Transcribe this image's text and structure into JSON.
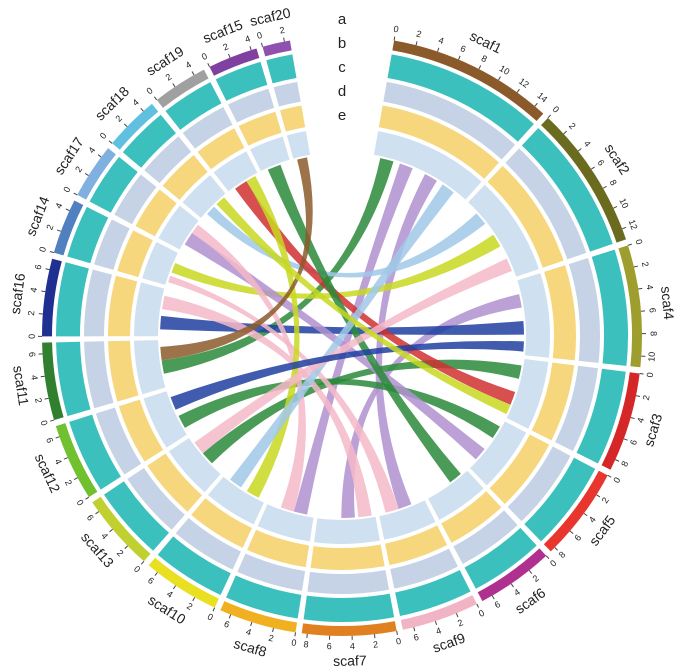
{
  "chart_data": {
    "type": "circos",
    "tracks": [
      "a",
      "b",
      "c",
      "d",
      "e"
    ],
    "scaffolds": [
      {
        "name": "scaf1",
        "length": 15,
        "color": "#8b5a2b",
        "ticks": [
          0,
          2,
          4,
          6,
          8,
          10,
          12,
          14
        ]
      },
      {
        "name": "scaf2",
        "length": 13,
        "color": "#6b6b1f",
        "ticks": [
          0,
          2,
          4,
          6,
          8,
          10,
          12
        ]
      },
      {
        "name": "scaf4",
        "length": 11,
        "color": "#9e9e2e",
        "ticks": [
          0,
          2,
          4,
          6,
          8,
          10
        ]
      },
      {
        "name": "scaf3",
        "length": 9,
        "color": "#d62728",
        "ticks": [
          0,
          2,
          4,
          6,
          8
        ]
      },
      {
        "name": "scaf5",
        "length": 8.5,
        "color": "#e8352e",
        "ticks": [
          0,
          2,
          4,
          6,
          8
        ]
      },
      {
        "name": "scaf6",
        "length": 7,
        "color": "#b03090",
        "ticks": [
          0,
          2,
          4,
          6
        ]
      },
      {
        "name": "scaf9",
        "length": 7,
        "color": "#f0b4c4",
        "ticks": [
          0,
          2,
          4,
          6
        ]
      },
      {
        "name": "scaf7",
        "length": 8.5,
        "color": "#e08020",
        "ticks": [
          0,
          2,
          4,
          6,
          8
        ]
      },
      {
        "name": "scaf8",
        "length": 7,
        "color": "#f0b020",
        "ticks": [
          0,
          2,
          4,
          6
        ]
      },
      {
        "name": "scaf10",
        "length": 7,
        "color": "#e8e020",
        "ticks": [
          0,
          2,
          4,
          6
        ]
      },
      {
        "name": "scaf13",
        "length": 7,
        "color": "#c0d030",
        "ticks": [
          0,
          2,
          4,
          6
        ]
      },
      {
        "name": "scaf12",
        "length": 7,
        "color": "#70c030",
        "ticks": [
          0,
          2,
          4,
          6
        ]
      },
      {
        "name": "scaf11",
        "length": 7,
        "color": "#308030",
        "ticks": [
          0,
          2,
          4,
          6
        ]
      },
      {
        "name": "scaf16",
        "length": 7,
        "color": "#203090",
        "ticks": [
          0,
          2,
          4,
          6
        ]
      },
      {
        "name": "scaf14",
        "length": 5,
        "color": "#5080c0",
        "ticks": [
          0,
          2,
          4
        ]
      },
      {
        "name": "scaf17",
        "length": 5,
        "color": "#80b0e0",
        "ticks": [
          0,
          2,
          4
        ]
      },
      {
        "name": "scaf18",
        "length": 5,
        "color": "#60c0e0",
        "ticks": [
          0,
          2,
          4
        ]
      },
      {
        "name": "scaf19",
        "length": 5,
        "color": "#a0a0a0",
        "ticks": [
          0,
          2,
          4
        ]
      },
      {
        "name": "scaf15",
        "length": 4.5,
        "color": "#8040a0",
        "ticks": [
          0,
          2,
          4
        ]
      },
      {
        "name": "scaf20",
        "length": 2.5,
        "color": "#9050b0",
        "ticks": [
          0,
          2
        ]
      }
    ],
    "links": [
      {
        "source": [
          0,
          1,
          3
        ],
        "target": [
          12,
          2,
          4
        ],
        "color": "#2a8a3a"
      },
      {
        "source": [
          0,
          4,
          6
        ],
        "target": [
          8,
          1,
          3
        ],
        "color": "#b090d0"
      },
      {
        "source": [
          0,
          8,
          10
        ],
        "target": [
          6,
          2,
          4
        ],
        "color": "#b090d0"
      },
      {
        "source": [
          1,
          2,
          4
        ],
        "target": [
          16,
          1,
          2.5
        ],
        "color": "#a0c8e8"
      },
      {
        "source": [
          1,
          6,
          8
        ],
        "target": [
          14,
          2,
          3.5
        ],
        "color": "#c8d820"
      },
      {
        "source": [
          2,
          2,
          4
        ],
        "target": [
          7,
          3,
          5
        ],
        "color": "#b090d0"
      },
      {
        "source": [
          2,
          6,
          8
        ],
        "target": [
          13,
          1,
          3
        ],
        "color": "#2040a0"
      },
      {
        "source": [
          3,
          1,
          3
        ],
        "target": [
          10,
          2,
          4
        ],
        "color": "#2a8a3a"
      },
      {
        "source": [
          3,
          5,
          7
        ],
        "target": [
          17,
          1,
          3
        ],
        "color": "#d03030"
      },
      {
        "source": [
          4,
          1,
          3
        ],
        "target": [
          11,
          1,
          3
        ],
        "color": "#2a8a3a"
      },
      {
        "source": [
          4,
          5,
          7
        ],
        "target": [
          15,
          1,
          3
        ],
        "color": "#b090d0"
      },
      {
        "source": [
          5,
          1,
          3
        ],
        "target": [
          18,
          1,
          3
        ],
        "color": "#2a8a3a"
      },
      {
        "source": [
          6,
          4,
          6
        ],
        "target": [
          14,
          0.5,
          1.5
        ],
        "color": "#f4b8c8"
      },
      {
        "source": [
          7,
          0.5,
          2.5
        ],
        "target": [
          13,
          4,
          6
        ],
        "color": "#f4b8c8"
      },
      {
        "source": [
          8,
          3,
          5
        ],
        "target": [
          15,
          3,
          4.5
        ],
        "color": "#f4b8c8"
      },
      {
        "source": [
          9,
          1,
          3
        ],
        "target": [
          17,
          3,
          4.5
        ],
        "color": "#c8d820"
      },
      {
        "source": [
          9,
          4,
          6
        ],
        "target": [
          0,
          11,
          13
        ],
        "color": "#a0c8e8"
      },
      {
        "source": [
          10,
          4,
          6
        ],
        "target": [
          1,
          10,
          12
        ],
        "color": "#f4b8c8"
      },
      {
        "source": [
          11,
          4,
          6
        ],
        "target": [
          2,
          9,
          10.5
        ],
        "color": "#2040a0"
      },
      {
        "source": [
          12,
          4,
          6
        ],
        "target": [
          19,
          0.5,
          2
        ],
        "color": "#8b5a2b"
      },
      {
        "source": [
          16,
          3,
          4.5
        ],
        "target": [
          3,
          7,
          8.5
        ],
        "color": "#c8d820"
      }
    ]
  }
}
